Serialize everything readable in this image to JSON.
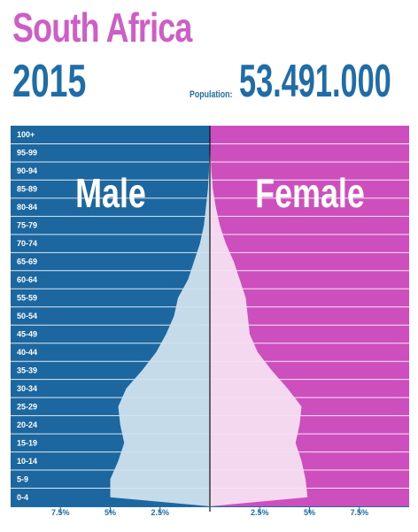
{
  "header": {
    "country": "South Africa",
    "year": "2015",
    "population_label": "Population:",
    "population_value": "53.491.000"
  },
  "colors": {
    "male": "#1c67a0",
    "female": "#cd4fbd",
    "male_fill": "#cfe2ee",
    "female_fill": "#f6dff1",
    "grid": "#ffffff",
    "text_blue": "#1f6da8",
    "title_pink": "#d05cc8"
  },
  "chart_data": {
    "type": "population-pyramid",
    "title": "South Africa 2015",
    "series": [
      {
        "name": "Male",
        "values": [
          5.0,
          5.0,
          4.6,
          4.3,
          4.5,
          4.6,
          4.2,
          3.4,
          2.7,
          2.2,
          1.8,
          1.6,
          1.1,
          0.8,
          0.5,
          0.3,
          0.2,
          0.1,
          0.05,
          0.02,
          0.01
        ]
      },
      {
        "name": "Female",
        "values": [
          4.9,
          4.8,
          4.6,
          4.3,
          4.5,
          4.6,
          3.9,
          3.1,
          2.4,
          2.0,
          1.9,
          1.8,
          1.5,
          1.2,
          0.8,
          0.5,
          0.3,
          0.15,
          0.07,
          0.03,
          0.01
        ]
      }
    ],
    "categories": [
      "0-4",
      "5-9",
      "10-14",
      "15-19",
      "20-24",
      "25-29",
      "30-34",
      "35-39",
      "40-44",
      "45-49",
      "50-54",
      "55-59",
      "60-64",
      "65-69",
      "70-74",
      "75-79",
      "80-84",
      "85-89",
      "90-94",
      "95-99",
      "100+"
    ],
    "x_ticks": {
      "male": [
        "7.5%",
        "5%",
        "2.5%"
      ],
      "female": [
        "2.5%",
        "5%",
        "7.5%"
      ]
    },
    "x_tick_values": {
      "male": [
        7.5,
        5,
        2.5
      ],
      "female": [
        2.5,
        5,
        7.5
      ]
    },
    "xlim": [
      0,
      10
    ],
    "unit": "%"
  }
}
